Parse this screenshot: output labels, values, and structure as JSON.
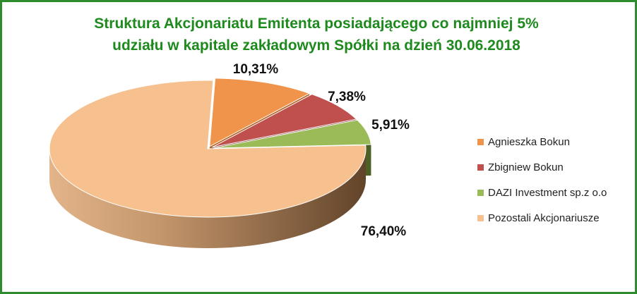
{
  "chart_data": {
    "type": "pie",
    "style": "3d-exploded",
    "title": "Struktura Akcjonariatu  Emitenta posiadającego co najmniej  5% udziału w kapitale zakładowym Spółki na dzień 30.06.2018",
    "title_lines": [
      "Struktura Akcjonariatu  Emitenta posiadającego co najmniej  5%",
      "udziału w kapitale zakładowym Spółki na dzień 30.06.2018"
    ],
    "legend_position": "right",
    "slices": [
      {
        "label": "Agnieszka Bokun",
        "value": 10.31,
        "value_label": "10,31%",
        "color": "#f0944b",
        "dark": "#b06426"
      },
      {
        "label": "Zbigniew Bokun",
        "value": 7.38,
        "value_label": "7,38%",
        "color": "#c0504d",
        "dark": "#7c2f2c"
      },
      {
        "label": "DAZI Investment sp.z o.o",
        "value": 5.91,
        "value_label": "5,91%",
        "color": "#9bbb59",
        "dark": "#4d6127"
      },
      {
        "label": "Pozostali Akcjonariusze",
        "value": 76.4,
        "value_label": "76,40%",
        "color": "#f6c18f",
        "dark": "#7a5636"
      }
    ]
  },
  "frame_color": "#2e8b2e",
  "title_color": "#1e8a1e"
}
